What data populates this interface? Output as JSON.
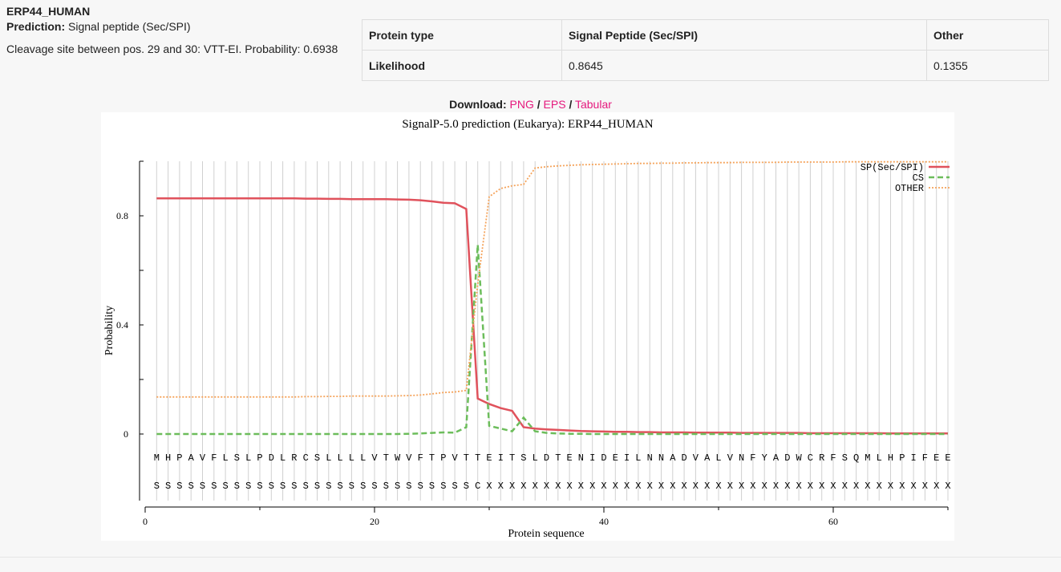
{
  "header": {
    "entry_name": "ERP44_HUMAN",
    "prediction_label": "Prediction:",
    "prediction_value": "Signal peptide (Sec/SPI)",
    "cleavage_text": "Cleavage site between pos. 29 and 30: VTT-EI. Probability: 0.6938"
  },
  "likelihood_table": {
    "header_row": [
      "Protein type",
      "Signal Peptide (Sec/SPI)",
      "Other"
    ],
    "row": [
      "Likelihood",
      "0.8645",
      "0.1355"
    ]
  },
  "download": {
    "label": "Download:",
    "png": "PNG",
    "eps": "EPS",
    "tabular": "Tabular",
    "sep": "/"
  },
  "chart_data": {
    "type": "line",
    "title": "SignalP-5.0 prediction (Eukarya):  ERP44_HUMAN",
    "xlabel": "Protein sequence",
    "ylabel": "Probability",
    "xlim": [
      0,
      70
    ],
    "ylim": [
      0,
      1
    ],
    "x_ticks": [
      0,
      20,
      40,
      60
    ],
    "y_ticks": [
      0,
      0.4,
      0.8
    ],
    "y_tick_labels": [
      "0",
      "0.4",
      "0.8"
    ],
    "x_tick_labels": [
      "0",
      "20",
      "40",
      "60"
    ],
    "grid": "vertical lines at each residue",
    "legend_position": "top-right",
    "sequence": "MHPAVFLSLPDLRCSLLLLVTWVFTPVTTEITSLDTENIDEILNNADVALVNFYADWCRFSQMLHPIFEE",
    "annotation": "SSSSSSSSSSSSSSSSSSSSSSSSSSSSCXXXXXXXXXXXXXXXXXXXXXXXXXXXXXXXXXXXXXXXXX",
    "series": [
      {
        "name": "SP(Sec/SPI)",
        "color": "#e0525c",
        "style": "solid",
        "values": [
          0.864,
          0.864,
          0.864,
          0.864,
          0.864,
          0.864,
          0.864,
          0.864,
          0.864,
          0.864,
          0.864,
          0.864,
          0.864,
          0.863,
          0.863,
          0.862,
          0.862,
          0.861,
          0.861,
          0.861,
          0.861,
          0.86,
          0.859,
          0.857,
          0.853,
          0.848,
          0.846,
          0.825,
          0.13,
          0.11,
          0.095,
          0.085,
          0.025,
          0.02,
          0.017,
          0.015,
          0.013,
          0.011,
          0.01,
          0.009,
          0.008,
          0.008,
          0.007,
          0.007,
          0.006,
          0.006,
          0.006,
          0.005,
          0.005,
          0.005,
          0.005,
          0.004,
          0.004,
          0.004,
          0.004,
          0.004,
          0.004,
          0.003,
          0.003,
          0.003,
          0.003,
          0.003,
          0.003,
          0.003,
          0.002,
          0.002,
          0.002,
          0.002,
          0.002,
          0.002
        ]
      },
      {
        "name": "CS",
        "color": "#6cbd5b",
        "style": "dashed",
        "values": [
          0,
          0,
          0,
          0,
          0,
          0,
          0,
          0,
          0,
          0,
          0,
          0,
          0,
          0,
          0,
          0,
          0,
          0,
          0,
          0,
          0,
          0,
          0.001,
          0.002,
          0.004,
          0.006,
          0.005,
          0.025,
          0.6938,
          0.03,
          0.02,
          0.01,
          0.06,
          0.01,
          0.004,
          0.002,
          0.001,
          0.001,
          0,
          0,
          0,
          0,
          0,
          0,
          0,
          0,
          0,
          0,
          0,
          0,
          0,
          0,
          0,
          0,
          0,
          0,
          0,
          0,
          0,
          0,
          0,
          0,
          0,
          0,
          0,
          0,
          0,
          0,
          0,
          0
        ]
      },
      {
        "name": "OTHER",
        "color": "#f5a35a",
        "style": "dotted",
        "values": [
          0.136,
          0.136,
          0.136,
          0.136,
          0.136,
          0.136,
          0.136,
          0.136,
          0.136,
          0.136,
          0.136,
          0.136,
          0.136,
          0.137,
          0.137,
          0.138,
          0.138,
          0.139,
          0.139,
          0.139,
          0.139,
          0.14,
          0.141,
          0.143,
          0.147,
          0.152,
          0.154,
          0.16,
          0.55,
          0.87,
          0.9,
          0.91,
          0.915,
          0.975,
          0.98,
          0.983,
          0.985,
          0.987,
          0.988,
          0.989,
          0.99,
          0.991,
          0.992,
          0.992,
          0.993,
          0.993,
          0.994,
          0.994,
          0.995,
          0.995,
          0.995,
          0.996,
          0.996,
          0.996,
          0.996,
          0.997,
          0.997,
          0.997,
          0.997,
          0.997,
          0.998,
          0.998,
          0.998,
          0.998,
          0.998,
          0.998,
          0.998,
          0.998,
          0.998,
          0.998
        ]
      }
    ]
  }
}
